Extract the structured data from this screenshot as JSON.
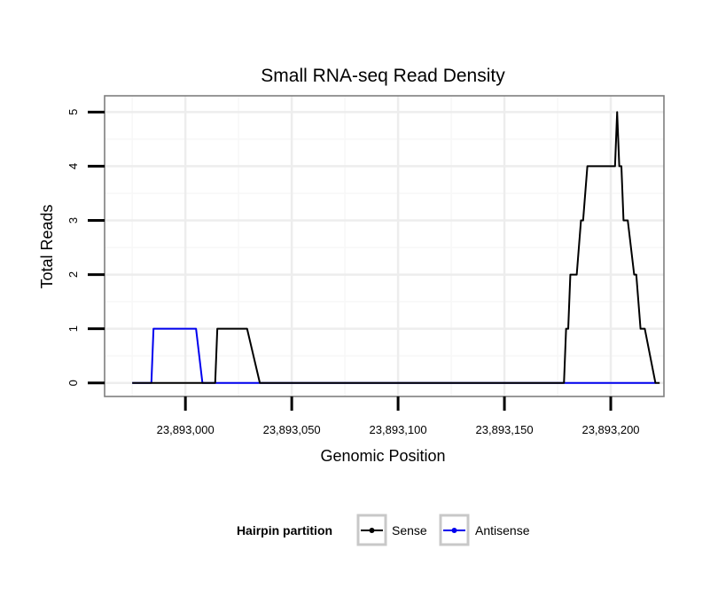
{
  "chart_data": {
    "type": "line",
    "title": "Small RNA-seq Read Density",
    "xlabel": "Genomic Position",
    "ylabel": "Total Reads",
    "xlim": [
      23892962,
      23893225
    ],
    "ylim": [
      -0.25,
      5.3
    ],
    "x_ticks": [
      23893000,
      23893050,
      23893100,
      23893150,
      23893200
    ],
    "x_tick_labels": [
      "23,893,000",
      "23,893,050",
      "23,893,100",
      "23,893,150",
      "23,893,200"
    ],
    "y_ticks": [
      0,
      1,
      2,
      3,
      4,
      5
    ],
    "y_tick_labels": [
      "0",
      "1",
      "2",
      "3",
      "4",
      "5"
    ],
    "grid": true,
    "legend": {
      "title": "Hairpin partition",
      "position": "bottom",
      "entries": [
        "Sense",
        "Antisense"
      ]
    },
    "series": [
      {
        "name": "Sense",
        "color": "#000000",
        "x": [
          23892975,
          23893014,
          23893015,
          23893029,
          23893035,
          23893178,
          23893179,
          23893180,
          23893181,
          23893182,
          23893184,
          23893186,
          23893187,
          23893189,
          23893191,
          23893201,
          23893202,
          23893203,
          23893204,
          23893205,
          23893206,
          23893207,
          23893208,
          23893211,
          23893212,
          23893214,
          23893216,
          23893221,
          23893223
        ],
        "y": [
          0,
          0,
          1,
          1,
          0,
          0,
          1,
          1,
          2,
          2,
          2,
          3,
          3,
          4,
          4,
          4,
          4,
          5,
          4,
          4,
          3,
          3,
          3,
          2,
          2,
          1,
          1,
          0,
          0
        ]
      },
      {
        "name": "Antisense",
        "color": "#0000ee",
        "x": [
          23892975,
          23892984,
          23892985,
          23893005,
          23893008,
          23893015,
          23893035,
          23893178,
          23893221
        ],
        "y": [
          0,
          0,
          1,
          1,
          0,
          0,
          0,
          0,
          0
        ]
      }
    ]
  }
}
